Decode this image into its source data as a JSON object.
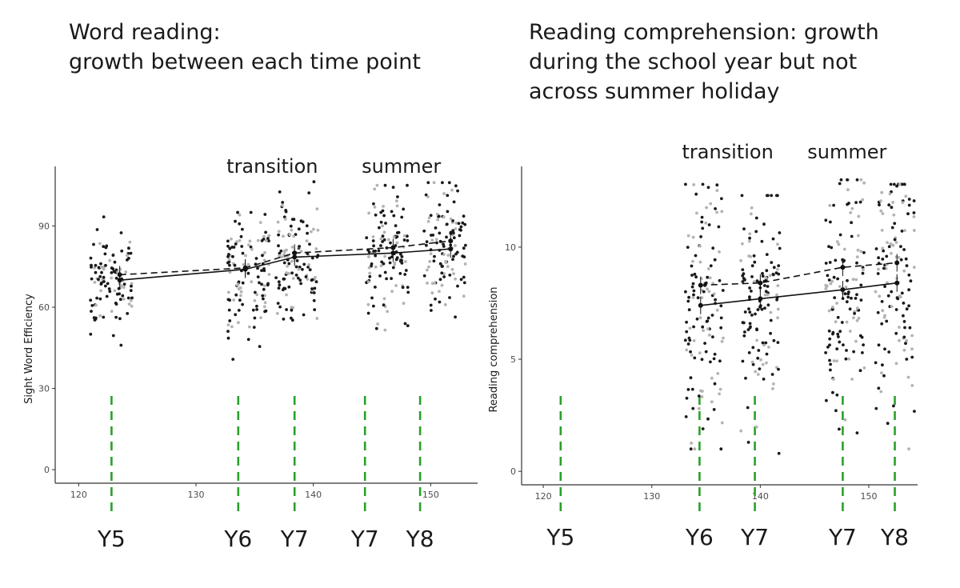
{
  "headings": {
    "left": [
      "Word reading:",
      "growth between each time point"
    ],
    "right": [
      "Reading comprehension: growth",
      "during the school year but not",
      "across summer holiday"
    ]
  },
  "chart_data": [
    {
      "type": "scatter",
      "ylabel": "Sight Word Efficiency",
      "xlim": [
        118,
        154
      ],
      "ylim": [
        -5,
        112
      ],
      "x_ticks": [
        120,
        130,
        140,
        150
      ],
      "y_ticks": [
        0,
        30,
        60,
        90
      ],
      "x_tick_labels": [
        "120",
        "130",
        "140",
        "150"
      ],
      "y_tick_labels": [
        "0",
        "30",
        "60",
        "90"
      ],
      "grid": false,
      "annotations": [
        {
          "text": "transition",
          "x": 136.5
        },
        {
          "text": "summer",
          "x": 147.5
        }
      ],
      "timepoints": [
        {
          "label": "Y5",
          "x": 122.8
        },
        {
          "label": "Y6",
          "x": 133.6
        },
        {
          "label": "Y7",
          "x": 138.4
        },
        {
          "label": "Y7",
          "x": 144.4
        },
        {
          "label": "Y8",
          "x": 149.1
        }
      ],
      "clusters": [
        {
          "x": 122.8,
          "mean": 70,
          "sd": 10,
          "ymin": 44,
          "ymax": 95,
          "n": 110
        },
        {
          "x": 134.5,
          "mean": 72,
          "sd": 12,
          "ymin": 30,
          "ymax": 95,
          "n": 120
        },
        {
          "x": 138.6,
          "mean": 78,
          "sd": 13,
          "ymin": 38,
          "ymax": 107,
          "n": 120
        },
        {
          "x": 146.3,
          "mean": 80,
          "sd": 12,
          "ymin": 45,
          "ymax": 105,
          "n": 120
        },
        {
          "x": 151.2,
          "mean": 82,
          "sd": 12,
          "ymin": 39,
          "ymax": 106,
          "n": 120
        }
      ],
      "series": [
        {
          "style": "solid",
          "x": [
            123.5,
            134.2,
            138.4,
            146.8,
            151.7
          ],
          "y": [
            70,
            74,
            78.5,
            80,
            81.5
          ]
        },
        {
          "style": "dashed",
          "x": [
            123.5,
            134.2,
            138.4,
            146.8,
            151.7
          ],
          "y": [
            72,
            74.5,
            80,
            82,
            84.5
          ]
        }
      ]
    },
    {
      "type": "scatter",
      "ylabel": "Reading comprehension",
      "xlim": [
        118,
        154.5
      ],
      "ylim": [
        -0.6,
        13.6
      ],
      "x_ticks": [
        120,
        130,
        140,
        150
      ],
      "y_ticks": [
        0,
        5,
        10
      ],
      "x_tick_labels": [
        "120",
        "130",
        "140",
        "150"
      ],
      "y_tick_labels": [
        "0",
        "5",
        "10"
      ],
      "grid": false,
      "annotations": [
        {
          "text": "transition",
          "x": 137
        },
        {
          "text": "summer",
          "x": 148
        }
      ],
      "timepoints": [
        {
          "label": "Y5",
          "x": 121.6
        },
        {
          "label": "Y6",
          "x": 134.4
        },
        {
          "label": "Y7",
          "x": 139.5
        },
        {
          "label": "Y7",
          "x": 147.6
        },
        {
          "label": "Y8",
          "x": 152.4
        }
      ],
      "clusters": [
        {
          "x": 134.8,
          "mean": 7.5,
          "sd": 2.8,
          "ymin": 1,
          "ymax": 12.8,
          "n": 130
        },
        {
          "x": 140,
          "mean": 7.8,
          "sd": 2.8,
          "ymin": 0.8,
          "ymax": 12.3,
          "n": 130
        },
        {
          "x": 147.8,
          "mean": 8.2,
          "sd": 3,
          "ymin": 0.1,
          "ymax": 13,
          "n": 130
        },
        {
          "x": 152.4,
          "mean": 8.5,
          "sd": 2.8,
          "ymin": 1,
          "ymax": 12.8,
          "n": 130
        }
      ],
      "series": [
        {
          "style": "solid",
          "x": [
            134.5,
            140,
            147.6,
            152.6
          ],
          "y": [
            7.4,
            7.7,
            8.1,
            8.4
          ]
        },
        {
          "style": "dashed",
          "x": [
            134.5,
            140,
            147.6,
            152.6
          ],
          "y": [
            8.3,
            8.4,
            9.1,
            9.3
          ]
        }
      ]
    }
  ]
}
